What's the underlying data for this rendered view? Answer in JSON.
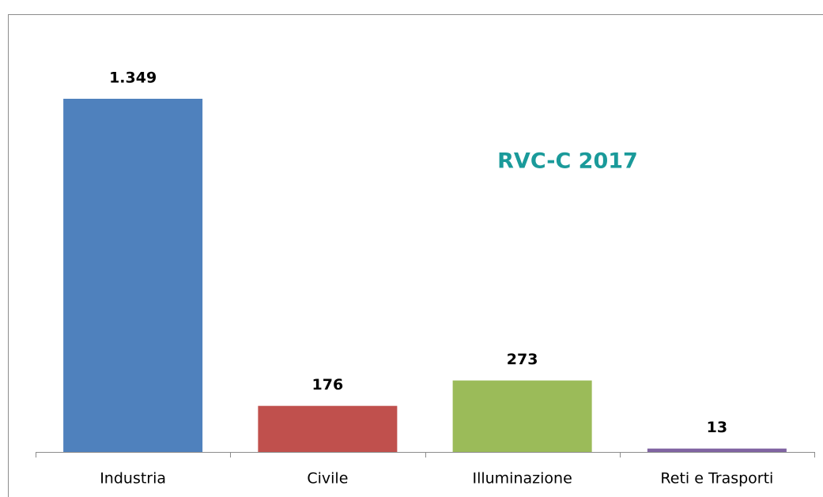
{
  "chart_data": {
    "type": "bar",
    "title": "RVC-C 2017",
    "categories": [
      "Industria",
      "Civile",
      "Illuminazione",
      "Reti e Trasporti"
    ],
    "values": [
      1349,
      176,
      273,
      13
    ],
    "value_labels": [
      "1.349",
      "176",
      "273",
      "13"
    ],
    "colors": [
      "#4f81bd",
      "#c0504d",
      "#9bbb59",
      "#8064a2"
    ]
  }
}
